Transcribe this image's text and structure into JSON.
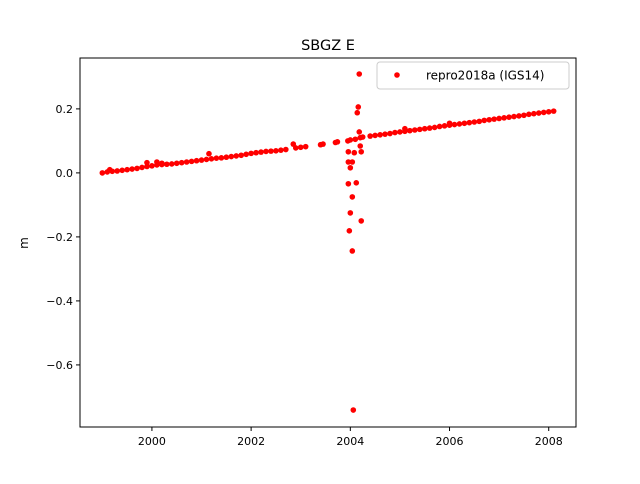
{
  "chart_data": {
    "type": "scatter",
    "title": "SBGZ E",
    "xlabel": "",
    "ylabel": "m",
    "xlim": [
      1998.55,
      2008.55
    ],
    "ylim": [
      -0.794,
      0.359
    ],
    "xticks": [
      2000,
      2002,
      2004,
      2006,
      2008
    ],
    "xtick_labels": [
      "2000",
      "2002",
      "2004",
      "2006",
      "2008"
    ],
    "yticks": [
      0.2,
      0.0,
      -0.2,
      -0.4,
      -0.6
    ],
    "ytick_labels": [
      "0.2",
      "0.0",
      "−0.2",
      "−0.4",
      "−0.6"
    ],
    "grid": false,
    "legend_position": "top-right",
    "series": [
      {
        "name": "repro2018a (IGS14)",
        "color": "#ff0000",
        "marker": "circle",
        "x": [
          1999.0,
          1999.1,
          1999.2,
          1999.3,
          1999.4,
          1999.5,
          1999.6,
          1999.7,
          1999.8,
          1999.9,
          2000.0,
          2000.1,
          2000.2,
          2000.3,
          2000.4,
          2000.5,
          2000.6,
          2000.7,
          2000.8,
          2000.9,
          2001.0,
          2001.1,
          2001.2,
          2001.3,
          2001.4,
          2001.5,
          2001.6,
          2001.7,
          2001.8,
          2001.9,
          2002.0,
          2002.1,
          2002.2,
          2002.3,
          2002.4,
          2002.5,
          2002.6,
          2002.7,
          1999.15,
          1999.9,
          2000.1,
          2000.2,
          2001.15,
          2002.85,
          2002.9,
          2003.0,
          2003.1,
          2003.4,
          2003.45,
          2003.7,
          2003.95,
          2004.0,
          2004.1,
          2004.2,
          2004.25,
          2004.4,
          2004.5,
          2004.6,
          2004.7,
          2004.8,
          2004.9,
          2005.0,
          2005.1,
          2005.2,
          2005.3,
          2005.4,
          2005.5,
          2005.6,
          2005.7,
          2005.8,
          2005.9,
          2006.0,
          2006.1,
          2006.2,
          2006.3,
          2006.4,
          2006.5,
          2006.6,
          2006.7,
          2006.8,
          2006.9,
          2007.0,
          2007.1,
          2007.2,
          2007.3,
          2007.4,
          2007.5,
          2007.6,
          2007.7,
          2007.8,
          2007.9,
          2008.0,
          2008.1,
          2005.1,
          2006.0,
          2004.18,
          2004.16,
          2004.14,
          2003.74,
          2004.18,
          2004.2,
          2004.22,
          2003.96,
          2004.08,
          2004.04,
          2003.96,
          2004.0,
          2003.96,
          2004.12,
          2004.04,
          2004.0,
          2004.22,
          2003.98,
          2004.04,
          2004.06
        ],
        "y": [
          0.0,
          0.003,
          0.005,
          0.006,
          0.008,
          0.01,
          0.012,
          0.014,
          0.017,
          0.02,
          0.022,
          0.025,
          0.026,
          0.027,
          0.028,
          0.03,
          0.032,
          0.034,
          0.036,
          0.038,
          0.04,
          0.042,
          0.044,
          0.046,
          0.047,
          0.049,
          0.051,
          0.053,
          0.055,
          0.058,
          0.061,
          0.063,
          0.065,
          0.067,
          0.068,
          0.069,
          0.071,
          0.073,
          0.01,
          0.032,
          0.034,
          0.03,
          0.06,
          0.09,
          0.078,
          0.08,
          0.082,
          0.088,
          0.09,
          0.095,
          0.1,
          0.103,
          0.105,
          0.11,
          0.112,
          0.115,
          0.117,
          0.119,
          0.121,
          0.123,
          0.126,
          0.128,
          0.13,
          0.132,
          0.134,
          0.136,
          0.138,
          0.14,
          0.142,
          0.145,
          0.147,
          0.149,
          0.151,
          0.153,
          0.155,
          0.157,
          0.159,
          0.161,
          0.164,
          0.166,
          0.168,
          0.17,
          0.172,
          0.174,
          0.176,
          0.178,
          0.18,
          0.183,
          0.185,
          0.187,
          0.189,
          0.191,
          0.193,
          0.138,
          0.155,
          0.309,
          0.206,
          0.188,
          0.097,
          0.128,
          0.084,
          0.066,
          0.066,
          0.063,
          0.034,
          0.034,
          0.016,
          -0.034,
          -0.031,
          -0.075,
          -0.125,
          -0.15,
          -0.181,
          -0.244,
          -0.741
        ]
      }
    ]
  }
}
